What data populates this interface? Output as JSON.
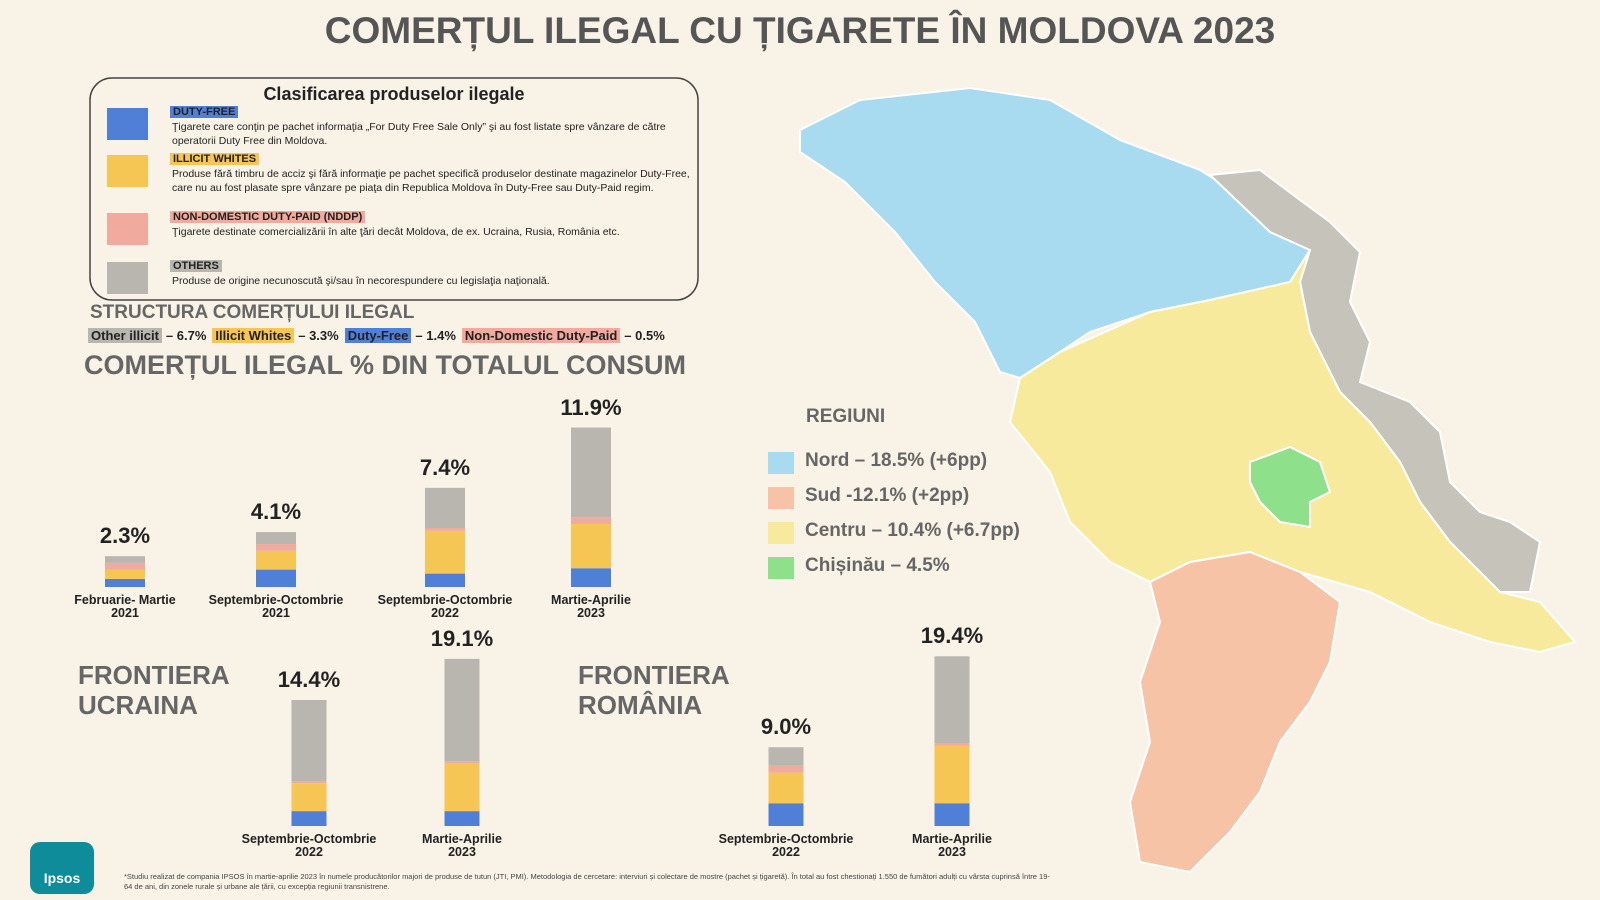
{
  "title": "COMERȚUL ILEGAL CU ȚIGARETE ÎN MOLDOVA 2023",
  "classification": {
    "title": "Clasificarea produselor ilegale",
    "items": [
      {
        "tag": "DUTY-FREE",
        "color": "#4f7fd6",
        "text": "Ţigarete care conţin pe pachet informaţia „For Duty Free Sale Only” şi au fost listate spre vânzare de către operatorii Duty Free din Moldova."
      },
      {
        "tag": "ILLICIT WHITES",
        "color": "#f6c655",
        "text": "Produse fără timbru de acciz şi fără informaţie pe pachet specifică produselor destinate magazinelor Duty-Free, care nu au fost plasate spre vânzare pe piaţa din Republica Moldova în Duty-Free sau Duty-Paid regim."
      },
      {
        "tag": "NON-DOMESTIC DUTY-PAID (NDDP)",
        "color": "#f0aa9e",
        "text": "Ţigarete destinate comercializării în alte ţări decât Moldova, de ex. Ucraina, Rusia, România etc."
      },
      {
        "tag": "OTHERS",
        "color": "#b9b6b0",
        "text": "Produse de origine necunoscută şi/sau în necorespundere cu legislaţia naţională."
      }
    ]
  },
  "structure": {
    "title": "STRUCTURA COMERȚULUI ILEGAL",
    "items": [
      {
        "label": "Other illicit",
        "text": "– 6.7%",
        "color": "#b9b6b0"
      },
      {
        "label": "Illicit Whites",
        "text": "– 3.3%",
        "color": "#f6c655"
      },
      {
        "label": "Duty-Free",
        "text": "– 1.4%",
        "color": "#4f7fd6"
      },
      {
        "label": "Non-Domestic Duty-Paid",
        "text": "– 0.5%",
        "color": "#f0aa9e"
      }
    ]
  },
  "section_title": "COMERȚUL ILEGAL % DIN TOTALUL CONSUM",
  "regions": {
    "title": "REGIUNI",
    "items": [
      {
        "label": "Nord – 18.5% (+6pp)",
        "color": "#a8daf0"
      },
      {
        "label": "Sud -12.1% (+2pp)",
        "color": "#f6c3a6"
      },
      {
        "label": "Centru – 10.4% (+6.7pp)",
        "color": "#f8ea9c"
      },
      {
        "label": "Chișinău – 4.5%",
        "color": "#8ee08a"
      }
    ]
  },
  "chart_data": [
    {
      "type": "stacked-bar",
      "categories": [
        "Februarie- Martie\n2021",
        "Septembrie-Octombrie\n2021",
        "Septembrie-Octombrie\n2022",
        "Martie-Aprilie\n2023"
      ],
      "totals": [
        2.3,
        4.1,
        7.4,
        11.9
      ],
      "total_labels": [
        "2.3%",
        "4.1%",
        "7.4%",
        "11.9%"
      ],
      "series": [
        {
          "color": "#4f7fd6",
          "values": [
            0.6,
            1.3,
            1.0,
            1.4
          ]
        },
        {
          "color": "#f6c655",
          "values": [
            0.7,
            1.4,
            3.2,
            3.3
          ]
        },
        {
          "color": "#f0aa9e",
          "values": [
            0.5,
            0.5,
            0.2,
            0.5
          ]
        },
        {
          "color": "#b9b6b0",
          "values": [
            0.5,
            0.9,
            3.0,
            6.7
          ]
        }
      ]
    },
    {
      "type": "stacked-bar",
      "title": "FRONTIERA\nUCRAINA",
      "categories": [
        "Septembrie-Octombrie\n2022",
        "Martie-Aprilie\n2023"
      ],
      "totals": [
        14.4,
        19.1
      ],
      "total_labels": [
        "14.4%",
        "19.1%"
      ],
      "series": [
        {
          "color": "#4f7fd6",
          "values": [
            1.7,
            1.7
          ]
        },
        {
          "color": "#f6c655",
          "values": [
            3.2,
            5.5
          ]
        },
        {
          "color": "#f0aa9e",
          "values": [
            0.2,
            0.2
          ]
        },
        {
          "color": "#b9b6b0",
          "values": [
            9.3,
            11.7
          ]
        }
      ]
    },
    {
      "type": "stacked-bar",
      "title": "FRONTIERA\nROMÂNIA",
      "categories": [
        "Septembrie-Octombrie\n2022",
        "Martie-Aprilie\n2023"
      ],
      "totals": [
        9.0,
        19.4
      ],
      "total_labels": [
        "9.0%",
        "19.4%"
      ],
      "series": [
        {
          "color": "#4f7fd6",
          "values": [
            2.6,
            2.6
          ]
        },
        {
          "color": "#f6c655",
          "values": [
            3.5,
            6.6
          ]
        },
        {
          "color": "#f0aa9e",
          "values": [
            0.8,
            0.2
          ]
        },
        {
          "color": "#b9b6b0",
          "values": [
            2.1,
            10.0
          ]
        }
      ]
    }
  ],
  "logo": "Ipsos",
  "footnote": "*Studiu realizat de compania IPSOS în martie-aprilie 2023 în numele producătorilor majori de produse de tutun (JTI, PMI). Metodologia de cercetare: interviuri și colectare de mostre (pachet și țigaretă). În total au fost chestionați 1.550 de fumători adulți cu vârsta cuprinsă între 19-64 de ani, din zonele rurale și urbane ale țării, cu excepția regiunii transnistrene."
}
